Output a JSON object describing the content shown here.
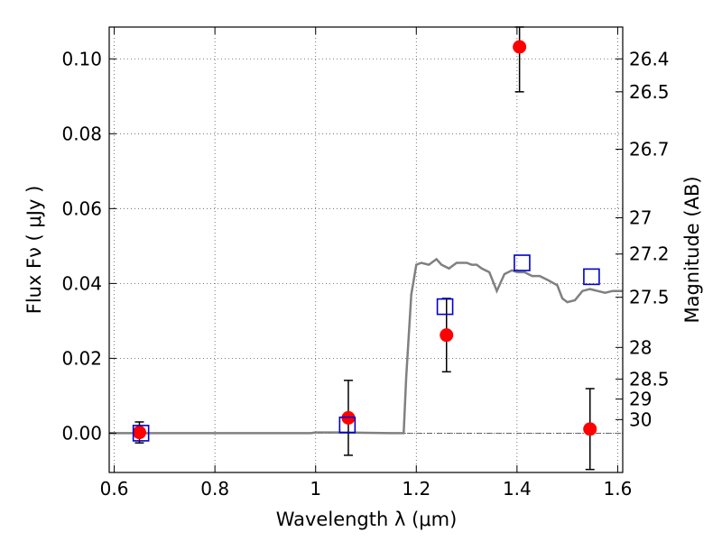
{
  "chart_data": {
    "type": "scatter",
    "title": "",
    "xlabel": "Wavelength  λ (μm)",
    "ylabel": "Flux  Fν ( μJy )",
    "y2label": "Magnitude (AB)",
    "xlim": [
      0.59,
      1.61
    ],
    "ylim": [
      -0.0105,
      0.1085
    ],
    "x_ticks": [
      0.6,
      0.8,
      1.0,
      1.2,
      1.4,
      1.6
    ],
    "x_tick_labels": [
      "0.6",
      "0.8",
      "1",
      "1.2",
      "1.4",
      "1.6"
    ],
    "y_ticks": [
      0.0,
      0.02,
      0.04,
      0.06,
      0.08,
      0.1
    ],
    "y_tick_labels": [
      "0.00",
      "0.02",
      "0.04",
      "0.06",
      "0.08",
      "0.10"
    ],
    "magnitude_ticks": [
      26.4,
      26.5,
      26.7,
      27,
      27.2,
      27.5,
      28,
      28.5,
      29,
      30
    ],
    "magnitude_tick_labels": [
      "26.4",
      "26.5",
      "26.7",
      "27",
      "27.2",
      "27.5",
      "28",
      "28.5",
      "29",
      "30"
    ],
    "grid": true,
    "colors": {
      "observed": "#ff0000",
      "model": "#0000cc",
      "template": "#808080",
      "errorbar": "#000000"
    },
    "series": [
      {
        "kind": "observed_points",
        "x": [
          0.65,
          1.065,
          1.26,
          1.405,
          1.545
        ],
        "y": [
          0.0002,
          0.0041,
          0.0262,
          0.1032,
          0.0011
        ],
        "yerr": [
          0.0028,
          0.01,
          0.0098,
          0.012,
          0.0108
        ]
      },
      {
        "kind": "model_points",
        "x": [
          0.653,
          1.063,
          1.257,
          1.41,
          1.548
        ],
        "y": [
          0.0,
          0.0022,
          0.0338,
          0.0455,
          0.0418
        ]
      },
      {
        "kind": "template_line",
        "x": [
          0.59,
          0.65,
          0.7,
          0.8,
          0.9,
          0.99,
          1.0,
          1.05,
          1.1,
          1.15,
          1.175,
          1.18,
          1.19,
          1.2,
          1.21,
          1.225,
          1.24,
          1.25,
          1.265,
          1.28,
          1.3,
          1.31,
          1.32,
          1.33,
          1.345,
          1.36,
          1.375,
          1.39,
          1.4,
          1.415,
          1.43,
          1.445,
          1.46,
          1.48,
          1.49,
          1.5,
          1.515,
          1.53,
          1.545,
          1.56,
          1.575,
          1.59,
          1.61
        ],
        "y": [
          0.0,
          0.0,
          0.0,
          0.0,
          0.0,
          0.0,
          0.0002,
          0.0002,
          0.0001,
          0.0,
          0.0,
          0.015,
          0.037,
          0.045,
          0.0455,
          0.045,
          0.0465,
          0.045,
          0.044,
          0.0455,
          0.0455,
          0.045,
          0.045,
          0.044,
          0.043,
          0.038,
          0.0425,
          0.0435,
          0.043,
          0.043,
          0.042,
          0.042,
          0.041,
          0.0395,
          0.036,
          0.035,
          0.0355,
          0.038,
          0.0385,
          0.038,
          0.0375,
          0.038,
          0.038
        ]
      }
    ]
  }
}
